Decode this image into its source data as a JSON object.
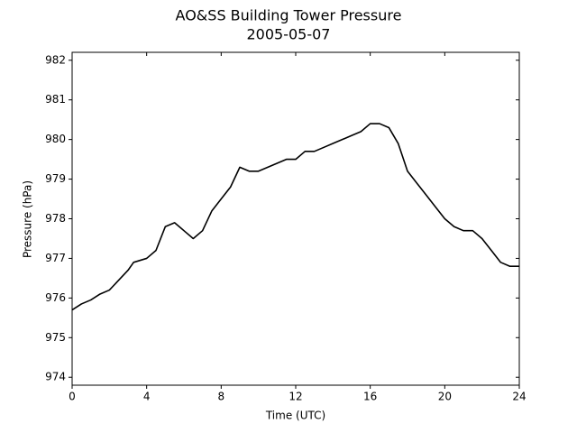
{
  "chart_data": {
    "type": "line",
    "title": "AO&SS Building Tower Pressure",
    "subtitle": "2005-05-07",
    "x_label": "Time (UTC)",
    "y_label": "Pressure (hPa)",
    "x": [
      0,
      0.5,
      1,
      1.5,
      2,
      2.5,
      3,
      3.3,
      4,
      4.5,
      5,
      5.5,
      6,
      6.5,
      7,
      7.5,
      8,
      8.5,
      9,
      9.5,
      10,
      10.5,
      11,
      11.5,
      12,
      12.5,
      13,
      13.5,
      14,
      14.5,
      15,
      15.5,
      16,
      16.5,
      17,
      17.5,
      18,
      18.5,
      19,
      19.5,
      20,
      20.5,
      21,
      21.5,
      22,
      22.5,
      23,
      23.5,
      24
    ],
    "series": [
      {
        "name": "Pressure",
        "color": "#000000",
        "values": [
          975.7,
          975.85,
          975.95,
          976.1,
          976.2,
          976.45,
          976.7,
          976.9,
          977.0,
          977.2,
          977.8,
          977.9,
          977.7,
          977.5,
          977.7,
          978.2,
          978.5,
          978.8,
          979.3,
          979.2,
          979.2,
          979.3,
          979.4,
          979.5,
          979.5,
          979.7,
          979.7,
          979.8,
          979.9,
          980.0,
          980.1,
          980.2,
          980.4,
          980.4,
          980.3,
          979.9,
          979.2,
          978.9,
          978.6,
          978.3,
          978.0,
          977.8,
          977.7,
          977.7,
          977.5,
          977.2,
          976.9,
          976.8,
          976.8
        ]
      }
    ],
    "xlim": [
      0,
      24
    ],
    "xticks": [
      0,
      4,
      8,
      12,
      16,
      20,
      24
    ],
    "ylim": [
      973.8,
      982.2
    ],
    "yticks": [
      974,
      975,
      976,
      977,
      978,
      979,
      980,
      981,
      982
    ]
  }
}
